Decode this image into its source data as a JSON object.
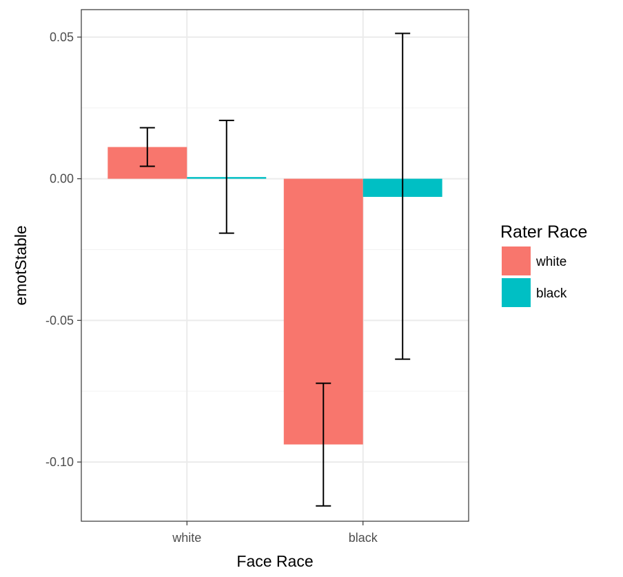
{
  "chart_data": {
    "type": "bar",
    "categories": [
      "white",
      "black"
    ],
    "series": [
      {
        "name": "white",
        "color": "#F8766D",
        "values": [
          0.0112,
          -0.0938
        ],
        "error_low": [
          0.0044,
          -0.1155
        ],
        "error_high": [
          0.018,
          -0.0722
        ]
      },
      {
        "name": "black",
        "color": "#00BFC4",
        "values": [
          0.0006,
          -0.0064
        ],
        "error_low": [
          -0.0192,
          -0.0637
        ],
        "error_high": [
          0.0206,
          0.0513
        ]
      }
    ],
    "xlabel": "Face Race",
    "ylabel": "emotStable",
    "ylim": [
      -0.1209,
      0.0597
    ],
    "yticks": [
      0.05,
      0.0,
      -0.05,
      -0.1
    ],
    "ytick_labels": [
      "0.05",
      "0.00",
      "-0.05",
      "-0.10"
    ],
    "legend": {
      "title": "Rater Race",
      "entries": [
        "white",
        "black"
      ],
      "position": "right"
    },
    "grid": true,
    "theme": "bw"
  }
}
